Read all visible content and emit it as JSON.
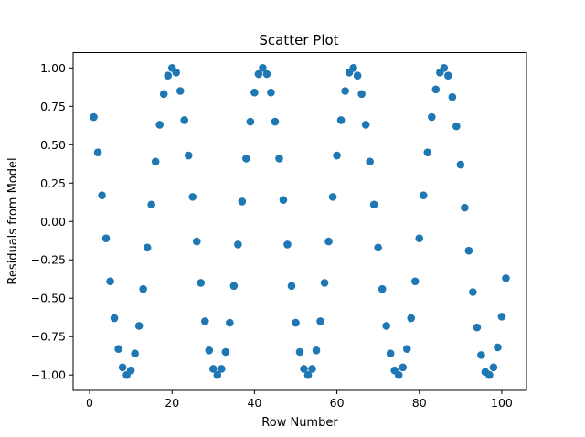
{
  "chart_data": {
    "type": "scatter",
    "title": "Scatter Plot",
    "xlabel": "Row Number",
    "ylabel": "Residuals from Model",
    "xlim": [
      -4.0,
      106.0
    ],
    "ylim": [
      -1.1,
      1.1
    ],
    "xticks": [
      0,
      20,
      40,
      60,
      80,
      100
    ],
    "xtick_labels": [
      "0",
      "20",
      "40",
      "60",
      "80",
      "100"
    ],
    "yticks": [
      -1.0,
      -0.75,
      -0.5,
      -0.25,
      0.0,
      0.25,
      0.5,
      0.75,
      1.0
    ],
    "ytick_labels": [
      "−1.00",
      "−0.75",
      "−0.50",
      "−0.25",
      "0.00",
      "0.25",
      "0.50",
      "0.75",
      "1.00"
    ],
    "grid": false,
    "marker_color": "#1f77b4",
    "series": [
      {
        "x": [
          1,
          2,
          3,
          4,
          5,
          6,
          7,
          8,
          9,
          10,
          11,
          12,
          13,
          14,
          15,
          16,
          17,
          18,
          19,
          20,
          21,
          22,
          23,
          24,
          25,
          26,
          27,
          28,
          29,
          30,
          31,
          32,
          33,
          34,
          35,
          36,
          37,
          38,
          39,
          40,
          41,
          42,
          43,
          44,
          45,
          46,
          47,
          48,
          49,
          50,
          51,
          52,
          53,
          54,
          55,
          56,
          57,
          58,
          59,
          60,
          61,
          62,
          63,
          64,
          65,
          66,
          67,
          68,
          69,
          70,
          71,
          72,
          73,
          74,
          75,
          76,
          77,
          78,
          79,
          80,
          81,
          82,
          83,
          84,
          85,
          86,
          87,
          88,
          89,
          90,
          91,
          92,
          93,
          94,
          95,
          96,
          97,
          98,
          99,
          100,
          101
        ],
        "y": [
          0.68,
          0.45,
          0.17,
          -0.11,
          -0.39,
          -0.63,
          -0.83,
          -0.95,
          -1.0,
          -0.97,
          -0.86,
          -0.68,
          -0.44,
          -0.17,
          0.11,
          0.39,
          0.63,
          0.83,
          0.95,
          1.0,
          0.97,
          0.85,
          0.66,
          0.43,
          0.16,
          -0.13,
          -0.4,
          -0.65,
          -0.84,
          -0.96,
          -1.0,
          -0.96,
          -0.85,
          -0.66,
          -0.42,
          -0.15,
          0.13,
          0.41,
          0.65,
          0.84,
          0.96,
          1.0,
          0.96,
          0.84,
          0.65,
          0.41,
          0.14,
          -0.15,
          -0.42,
          -0.66,
          -0.85,
          -0.96,
          -1.0,
          -0.96,
          -0.84,
          -0.65,
          -0.4,
          -0.13,
          0.16,
          0.43,
          0.66,
          0.85,
          0.97,
          1.0,
          0.95,
          0.83,
          0.63,
          0.39,
          0.11,
          -0.17,
          -0.44,
          -0.68,
          -0.86,
          -0.97,
          -1.0,
          -0.95,
          -0.83,
          -0.63,
          -0.39,
          -0.11,
          0.17,
          0.45,
          0.68,
          0.86,
          0.97,
          1.0,
          0.95,
          0.81,
          0.62,
          0.37,
          0.09,
          -0.19,
          -0.46,
          -0.69,
          -0.87,
          -0.98,
          -1.0,
          -0.95,
          -0.82,
          -0.62,
          -0.37
        ]
      }
    ]
  }
}
